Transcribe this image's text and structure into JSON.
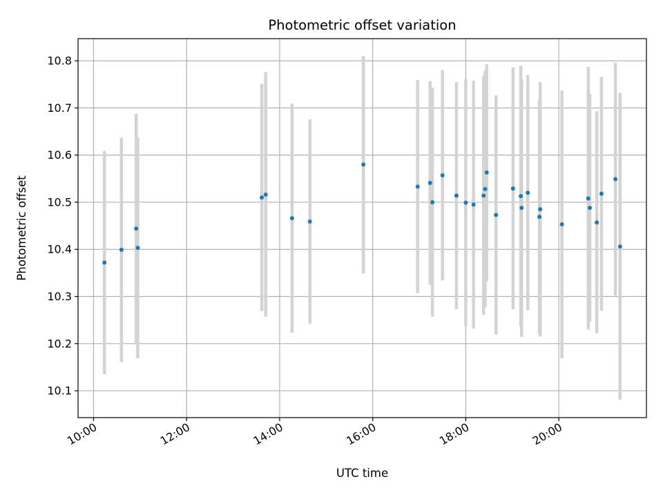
{
  "chart_data": {
    "type": "scatter",
    "title": "Photometric offset variation",
    "xlabel": "UTC time",
    "ylabel": "Photometric offset",
    "x_axis": "time (HH:MM)",
    "xlim": [
      "09:40",
      "21:53"
    ],
    "ylim": [
      10.043,
      10.847
    ],
    "x_ticks": [
      "10:00",
      "12:00",
      "14:00",
      "16:00",
      "18:00",
      "20:00"
    ],
    "y_ticks": [
      10.1,
      10.2,
      10.3,
      10.4,
      10.5,
      10.6,
      10.7,
      10.8
    ],
    "grid": true,
    "legend": "none",
    "point_color": "#1f77b4",
    "errorbar_color": "#d3d3d3",
    "points": [
      {
        "x": "10:14",
        "y": 10.372,
        "ylow": 10.135,
        "yhigh": 10.609
      },
      {
        "x": "10:36",
        "y": 10.399,
        "ylow": 10.161,
        "yhigh": 10.637
      },
      {
        "x": "10:55",
        "y": 10.444,
        "ylow": 10.2,
        "yhigh": 10.688
      },
      {
        "x": "10:57",
        "y": 10.403,
        "ylow": 10.169,
        "yhigh": 10.637
      },
      {
        "x": "13:37",
        "y": 10.51,
        "ylow": 10.269,
        "yhigh": 10.751
      },
      {
        "x": "13:42",
        "y": 10.516,
        "ylow": 10.257,
        "yhigh": 10.776
      },
      {
        "x": "14:16",
        "y": 10.466,
        "ylow": 10.223,
        "yhigh": 10.709
      },
      {
        "x": "14:39",
        "y": 10.459,
        "ylow": 10.242,
        "yhigh": 10.676
      },
      {
        "x": "15:48",
        "y": 10.58,
        "ylow": 10.349,
        "yhigh": 10.81
      },
      {
        "x": "16:58",
        "y": 10.533,
        "ylow": 10.307,
        "yhigh": 10.759
      },
      {
        "x": "17:14",
        "y": 10.541,
        "ylow": 10.325,
        "yhigh": 10.757
      },
      {
        "x": "17:17",
        "y": 10.5,
        "ylow": 10.257,
        "yhigh": 10.743
      },
      {
        "x": "17:30",
        "y": 10.557,
        "ylow": 10.334,
        "yhigh": 10.78
      },
      {
        "x": "17:48",
        "y": 10.514,
        "ylow": 10.273,
        "yhigh": 10.755
      },
      {
        "x": "18:00",
        "y": 10.499,
        "ylow": 10.237,
        "yhigh": 10.761
      },
      {
        "x": "18:10",
        "y": 10.495,
        "ylow": 10.232,
        "yhigh": 10.758
      },
      {
        "x": "18:23",
        "y": 10.514,
        "ylow": 10.261,
        "yhigh": 10.767
      },
      {
        "x": "18:25",
        "y": 10.528,
        "ylow": 10.277,
        "yhigh": 10.779
      },
      {
        "x": "18:27",
        "y": 10.563,
        "ylow": 10.332,
        "yhigh": 10.793
      },
      {
        "x": "18:39",
        "y": 10.473,
        "ylow": 10.219,
        "yhigh": 10.727
      },
      {
        "x": "19:01",
        "y": 10.529,
        "ylow": 10.273,
        "yhigh": 10.786
      },
      {
        "x": "19:11",
        "y": 10.513,
        "ylow": 10.236,
        "yhigh": 10.79
      },
      {
        "x": "19:12",
        "y": 10.488,
        "ylow": 10.214,
        "yhigh": 10.762
      },
      {
        "x": "19:20",
        "y": 10.52,
        "ylow": 10.271,
        "yhigh": 10.77
      },
      {
        "x": "19:35",
        "y": 10.469,
        "ylow": 10.222,
        "yhigh": 10.716
      },
      {
        "x": "19:36",
        "y": 10.485,
        "ylow": 10.215,
        "yhigh": 10.755
      },
      {
        "x": "20:04",
        "y": 10.453,
        "ylow": 10.169,
        "yhigh": 10.737
      },
      {
        "x": "20:38",
        "y": 10.508,
        "ylow": 10.23,
        "yhigh": 10.787
      },
      {
        "x": "20:40",
        "y": 10.488,
        "ylow": 10.247,
        "yhigh": 10.73
      },
      {
        "x": "20:49",
        "y": 10.457,
        "ylow": 10.222,
        "yhigh": 10.693
      },
      {
        "x": "20:55",
        "y": 10.518,
        "ylow": 10.27,
        "yhigh": 10.766
      },
      {
        "x": "21:13",
        "y": 10.549,
        "ylow": 10.302,
        "yhigh": 10.796
      },
      {
        "x": "21:19",
        "y": 10.406,
        "ylow": 10.081,
        "yhigh": 10.732
      }
    ]
  }
}
